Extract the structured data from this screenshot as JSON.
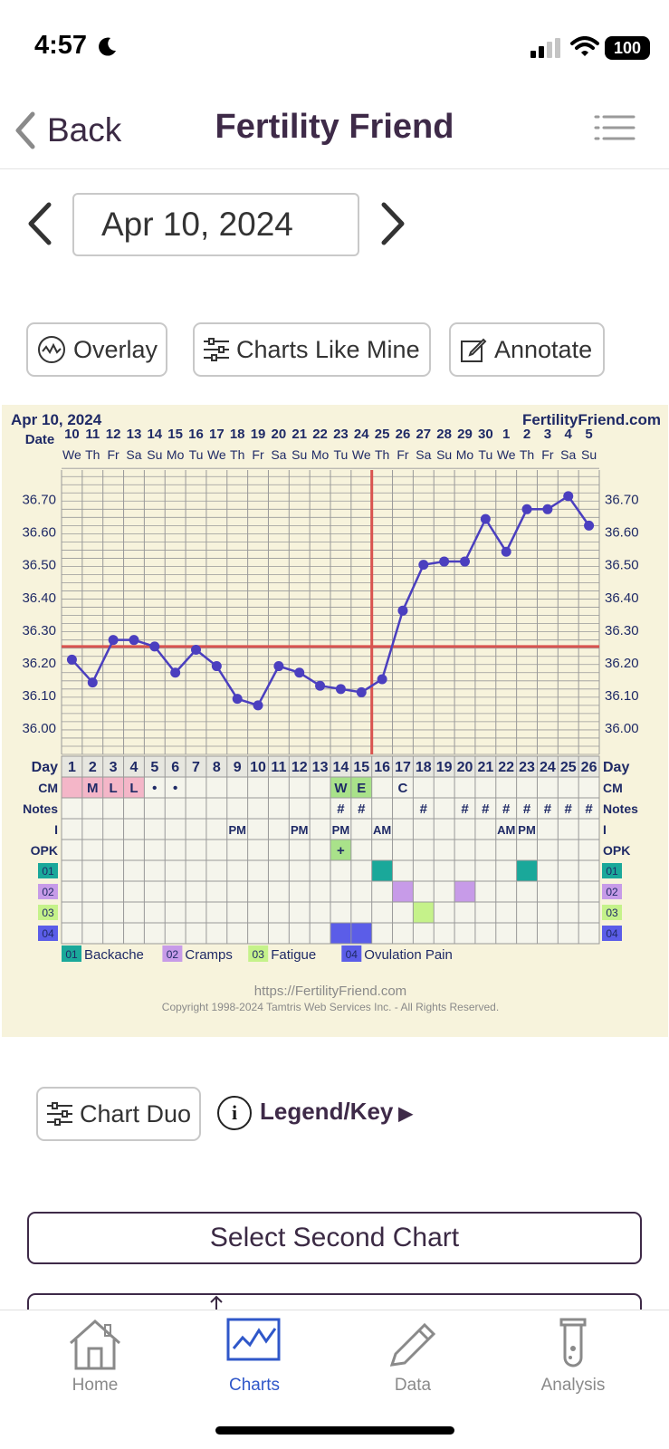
{
  "status_bar": {
    "time": "4:57",
    "battery": "100"
  },
  "nav": {
    "back_label": "Back",
    "title": "Fertility Friend"
  },
  "date_picker": {
    "value": "Apr 10, 2024"
  },
  "actions": {
    "overlay": "Overlay",
    "charts_like_mine": "Charts Like Mine",
    "annotate": "Annotate"
  },
  "chart_data": {
    "type": "line",
    "title": "Apr 10, 2024",
    "site": "FertilityFriend.com",
    "header_label": "Date",
    "dates": [
      "10",
      "11",
      "12",
      "13",
      "14",
      "15",
      "16",
      "17",
      "18",
      "19",
      "20",
      "21",
      "22",
      "23",
      "24",
      "25",
      "26",
      "27",
      "28",
      "29",
      "30",
      "1",
      "2",
      "3",
      "4",
      "5"
    ],
    "weekdays": [
      "We",
      "Th",
      "Fr",
      "Sa",
      "Su",
      "Mo",
      "Tu",
      "We",
      "Th",
      "Fr",
      "Sa",
      "Su",
      "Mo",
      "Tu",
      "We",
      "Th",
      "Fr",
      "Sa",
      "Su",
      "Mo",
      "Tu",
      "We",
      "Th",
      "Fr",
      "Sa",
      "Su"
    ],
    "x": [
      1,
      2,
      3,
      4,
      5,
      6,
      7,
      8,
      9,
      10,
      11,
      12,
      13,
      14,
      15,
      16,
      17,
      18,
      19,
      20,
      21,
      22,
      23,
      24,
      25,
      26
    ],
    "series": [
      {
        "values": [
          36.21,
          36.14,
          36.27,
          36.27,
          36.25,
          36.17,
          36.24,
          36.19,
          36.09,
          36.07,
          36.19,
          36.17,
          36.13,
          36.12,
          36.11,
          36.15,
          36.36,
          36.5,
          36.51,
          36.51,
          36.64,
          36.54,
          36.67,
          36.67,
          36.71,
          36.62
        ]
      }
    ],
    "y_ticks": [
      "36.70",
      "36.60",
      "36.50",
      "36.40",
      "36.30",
      "36.20",
      "36.10",
      "36.00"
    ],
    "ylim": [
      35.92,
      36.79
    ],
    "coverline": 36.25,
    "ovulation_day": 16,
    "colors": {
      "line": "#4b3fbf",
      "coverline": "#d9534f",
      "grid": "#999999",
      "background": "#f7f3dc"
    },
    "row_labels": {
      "day": "Day",
      "cm": "CM",
      "notes": "Notes",
      "i": "I",
      "opk": "OPK",
      "s1": "01",
      "s2": "02",
      "s3": "03",
      "s4": "04"
    },
    "cm": [
      "",
      "M",
      "L",
      "L",
      "•",
      "•",
      "",
      "",
      "",
      "",
      "",
      "",
      "",
      "W",
      "E",
      "",
      "C",
      "",
      "",
      "",
      "",
      "",
      "",
      "",
      "",
      ""
    ],
    "cm_colors": [
      "#f4b6c8",
      "#f4b6c8",
      "#f4b6c8",
      "#f4b6c8",
      "",
      "",
      "",
      "",
      "",
      "",
      "",
      "",
      "",
      "#a9e28a",
      "#a9e28a",
      "",
      "",
      "",
      "",
      "",
      "",
      "",
      "",
      "",
      "",
      ""
    ],
    "notes": [
      "",
      "",
      "",
      "",
      "",
      "",
      "",
      "",
      "",
      "",
      "",
      "",
      "",
      "#",
      "#",
      "",
      "",
      "#",
      "",
      "#",
      "#",
      "#",
      "#",
      "#",
      "#",
      "#"
    ],
    "intercourse": [
      "",
      "",
      "",
      "",
      "",
      "",
      "",
      "",
      "PM",
      "",
      "",
      "PM",
      "",
      "PM",
      "",
      "AM",
      "",
      "",
      "",
      "",
      "",
      "AM",
      "PM",
      "",
      "",
      ""
    ],
    "opk": [
      "",
      "",
      "",
      "",
      "",
      "",
      "",
      "",
      "",
      "",
      "",
      "",
      "",
      "+",
      "",
      "",
      "",
      "",
      "",
      "",
      "",
      "",
      "",
      "",
      "",
      ""
    ],
    "symptoms": [
      {
        "code": "01",
        "name": "Backache",
        "color": "#1aa89a",
        "days": [
          16,
          23
        ]
      },
      {
        "code": "02",
        "name": "Cramps",
        "color": "#c79be8",
        "days": [
          17,
          20
        ]
      },
      {
        "code": "03",
        "name": "Fatigue",
        "color": "#c5f28a",
        "days": [
          18
        ]
      },
      {
        "code": "04",
        "name": "Ovulation Pain",
        "color": "#5b5de8",
        "days": [
          14,
          15
        ]
      }
    ],
    "footer_url": "https://FertilityFriend.com",
    "copyright": "Copyright 1998-2024 Tamtris Web Services Inc. - All Rights Reserved."
  },
  "below_chart": {
    "chart_duo": "Chart Duo",
    "info": "i",
    "legend_key": "Legend/Key",
    "legend_arrow": "▶",
    "select_second": "Select Second Chart"
  },
  "tabs": [
    {
      "label": "Home",
      "icon": "home-icon"
    },
    {
      "label": "Charts",
      "icon": "chart-icon"
    },
    {
      "label": "Data",
      "icon": "pencil-icon"
    },
    {
      "label": "Analysis",
      "icon": "test-tube-icon"
    }
  ],
  "active_tab": "Charts"
}
